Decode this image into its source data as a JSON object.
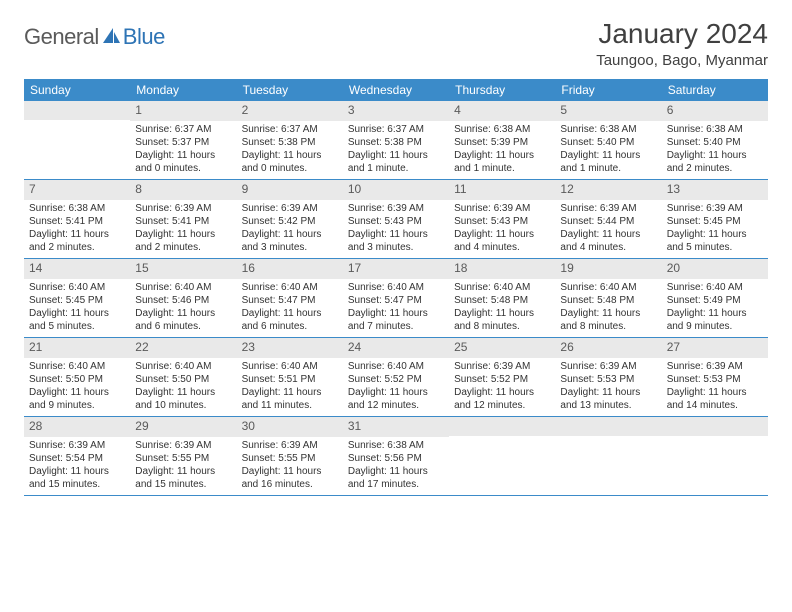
{
  "colors": {
    "header_bg": "#3b8bc9",
    "header_text": "#ffffff",
    "daynum_bg": "#e9e9e9",
    "daynum_text": "#5a5a5a",
    "body_text": "#333333",
    "title_text": "#404040",
    "logo_gray": "#5a5a5a",
    "logo_blue": "#2e74b5",
    "row_border": "#3b8bc9"
  },
  "logo": {
    "general": "General",
    "blue": "Blue"
  },
  "title": "January 2024",
  "location": "Taungoo, Bago, Myanmar",
  "weekdays": [
    "Sunday",
    "Monday",
    "Tuesday",
    "Wednesday",
    "Thursday",
    "Friday",
    "Saturday"
  ],
  "weeks": [
    [
      {
        "n": "",
        "sr": "",
        "ss": "",
        "dl": ""
      },
      {
        "n": "1",
        "sr": "Sunrise: 6:37 AM",
        "ss": "Sunset: 5:37 PM",
        "dl": "Daylight: 11 hours and 0 minutes."
      },
      {
        "n": "2",
        "sr": "Sunrise: 6:37 AM",
        "ss": "Sunset: 5:38 PM",
        "dl": "Daylight: 11 hours and 0 minutes."
      },
      {
        "n": "3",
        "sr": "Sunrise: 6:37 AM",
        "ss": "Sunset: 5:38 PM",
        "dl": "Daylight: 11 hours and 1 minute."
      },
      {
        "n": "4",
        "sr": "Sunrise: 6:38 AM",
        "ss": "Sunset: 5:39 PM",
        "dl": "Daylight: 11 hours and 1 minute."
      },
      {
        "n": "5",
        "sr": "Sunrise: 6:38 AM",
        "ss": "Sunset: 5:40 PM",
        "dl": "Daylight: 11 hours and 1 minute."
      },
      {
        "n": "6",
        "sr": "Sunrise: 6:38 AM",
        "ss": "Sunset: 5:40 PM",
        "dl": "Daylight: 11 hours and 2 minutes."
      }
    ],
    [
      {
        "n": "7",
        "sr": "Sunrise: 6:38 AM",
        "ss": "Sunset: 5:41 PM",
        "dl": "Daylight: 11 hours and 2 minutes."
      },
      {
        "n": "8",
        "sr": "Sunrise: 6:39 AM",
        "ss": "Sunset: 5:41 PM",
        "dl": "Daylight: 11 hours and 2 minutes."
      },
      {
        "n": "9",
        "sr": "Sunrise: 6:39 AM",
        "ss": "Sunset: 5:42 PM",
        "dl": "Daylight: 11 hours and 3 minutes."
      },
      {
        "n": "10",
        "sr": "Sunrise: 6:39 AM",
        "ss": "Sunset: 5:43 PM",
        "dl": "Daylight: 11 hours and 3 minutes."
      },
      {
        "n": "11",
        "sr": "Sunrise: 6:39 AM",
        "ss": "Sunset: 5:43 PM",
        "dl": "Daylight: 11 hours and 4 minutes."
      },
      {
        "n": "12",
        "sr": "Sunrise: 6:39 AM",
        "ss": "Sunset: 5:44 PM",
        "dl": "Daylight: 11 hours and 4 minutes."
      },
      {
        "n": "13",
        "sr": "Sunrise: 6:39 AM",
        "ss": "Sunset: 5:45 PM",
        "dl": "Daylight: 11 hours and 5 minutes."
      }
    ],
    [
      {
        "n": "14",
        "sr": "Sunrise: 6:40 AM",
        "ss": "Sunset: 5:45 PM",
        "dl": "Daylight: 11 hours and 5 minutes."
      },
      {
        "n": "15",
        "sr": "Sunrise: 6:40 AM",
        "ss": "Sunset: 5:46 PM",
        "dl": "Daylight: 11 hours and 6 minutes."
      },
      {
        "n": "16",
        "sr": "Sunrise: 6:40 AM",
        "ss": "Sunset: 5:47 PM",
        "dl": "Daylight: 11 hours and 6 minutes."
      },
      {
        "n": "17",
        "sr": "Sunrise: 6:40 AM",
        "ss": "Sunset: 5:47 PM",
        "dl": "Daylight: 11 hours and 7 minutes."
      },
      {
        "n": "18",
        "sr": "Sunrise: 6:40 AM",
        "ss": "Sunset: 5:48 PM",
        "dl": "Daylight: 11 hours and 8 minutes."
      },
      {
        "n": "19",
        "sr": "Sunrise: 6:40 AM",
        "ss": "Sunset: 5:48 PM",
        "dl": "Daylight: 11 hours and 8 minutes."
      },
      {
        "n": "20",
        "sr": "Sunrise: 6:40 AM",
        "ss": "Sunset: 5:49 PM",
        "dl": "Daylight: 11 hours and 9 minutes."
      }
    ],
    [
      {
        "n": "21",
        "sr": "Sunrise: 6:40 AM",
        "ss": "Sunset: 5:50 PM",
        "dl": "Daylight: 11 hours and 9 minutes."
      },
      {
        "n": "22",
        "sr": "Sunrise: 6:40 AM",
        "ss": "Sunset: 5:50 PM",
        "dl": "Daylight: 11 hours and 10 minutes."
      },
      {
        "n": "23",
        "sr": "Sunrise: 6:40 AM",
        "ss": "Sunset: 5:51 PM",
        "dl": "Daylight: 11 hours and 11 minutes."
      },
      {
        "n": "24",
        "sr": "Sunrise: 6:40 AM",
        "ss": "Sunset: 5:52 PM",
        "dl": "Daylight: 11 hours and 12 minutes."
      },
      {
        "n": "25",
        "sr": "Sunrise: 6:39 AM",
        "ss": "Sunset: 5:52 PM",
        "dl": "Daylight: 11 hours and 12 minutes."
      },
      {
        "n": "26",
        "sr": "Sunrise: 6:39 AM",
        "ss": "Sunset: 5:53 PM",
        "dl": "Daylight: 11 hours and 13 minutes."
      },
      {
        "n": "27",
        "sr": "Sunrise: 6:39 AM",
        "ss": "Sunset: 5:53 PM",
        "dl": "Daylight: 11 hours and 14 minutes."
      }
    ],
    [
      {
        "n": "28",
        "sr": "Sunrise: 6:39 AM",
        "ss": "Sunset: 5:54 PM",
        "dl": "Daylight: 11 hours and 15 minutes."
      },
      {
        "n": "29",
        "sr": "Sunrise: 6:39 AM",
        "ss": "Sunset: 5:55 PM",
        "dl": "Daylight: 11 hours and 15 minutes."
      },
      {
        "n": "30",
        "sr": "Sunrise: 6:39 AM",
        "ss": "Sunset: 5:55 PM",
        "dl": "Daylight: 11 hours and 16 minutes."
      },
      {
        "n": "31",
        "sr": "Sunrise: 6:38 AM",
        "ss": "Sunset: 5:56 PM",
        "dl": "Daylight: 11 hours and 17 minutes."
      },
      {
        "n": "",
        "sr": "",
        "ss": "",
        "dl": ""
      },
      {
        "n": "",
        "sr": "",
        "ss": "",
        "dl": ""
      },
      {
        "n": "",
        "sr": "",
        "ss": "",
        "dl": ""
      }
    ]
  ]
}
